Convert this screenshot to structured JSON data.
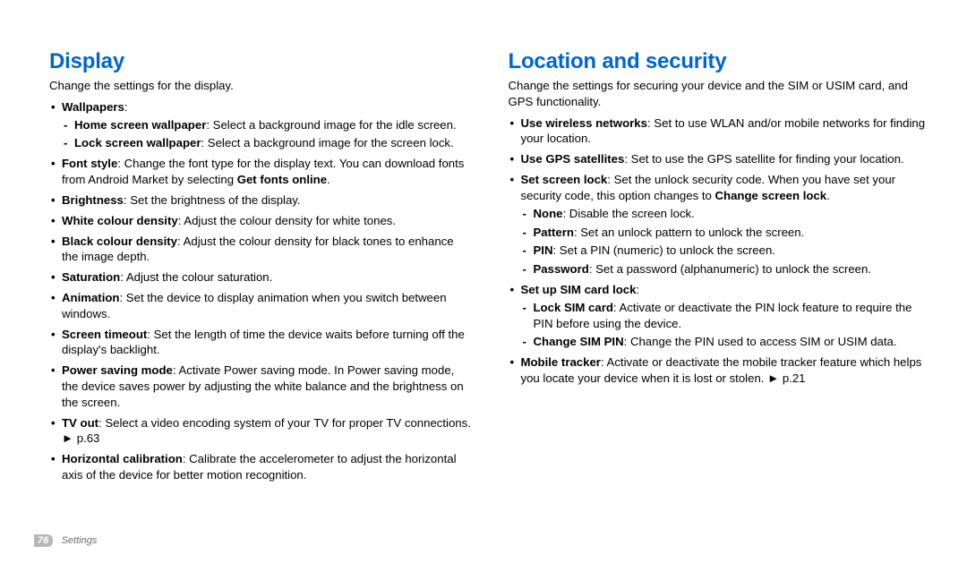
{
  "page": {
    "number": "76",
    "breadcrumb": "Settings"
  },
  "left": {
    "heading": "Display",
    "intro": "Change the settings for the display.",
    "items": [
      {
        "label": "Wallpapers",
        "suffix": ":",
        "sub": [
          {
            "label": "Home screen wallpaper",
            "text": ": Select a background image for the idle screen."
          },
          {
            "label": "Lock screen wallpaper",
            "text": ": Select a background image for the screen lock."
          }
        ]
      },
      {
        "label": "Font style",
        "text_before": ": Change the font type for the display text. You can download fonts from Android Market by selecting ",
        "inline_bold": "Get fonts online",
        "text_after": "."
      },
      {
        "label": "Brightness",
        "text": ": Set the brightness of the display."
      },
      {
        "label": "White colour density",
        "text": ": Adjust the colour density for white tones."
      },
      {
        "label": "Black colour density",
        "text": ": Adjust the colour density for black tones to enhance the image depth."
      },
      {
        "label": "Saturation",
        "text": ": Adjust the colour saturation."
      },
      {
        "label": "Animation",
        "text": ": Set the device to display animation when you switch between windows."
      },
      {
        "label": "Screen timeout",
        "text": ": Set the length of time the device waits before turning off the display's backlight."
      },
      {
        "label": "Power saving mode",
        "text": ": Activate Power saving mode. In Power saving mode, the device saves power by adjusting the white balance and the brightness on the screen."
      },
      {
        "label": "TV out",
        "text": ": Select a video encoding system of your TV for proper TV connections. ► p.63"
      },
      {
        "label": "Horizontal calibration",
        "text": ": Calibrate the accelerometer to adjust the horizontal axis of the device for better motion recognition."
      }
    ]
  },
  "right": {
    "heading": "Location and security",
    "intro": "Change the settings for securing your device and the SIM or USIM card, and GPS functionality.",
    "items": [
      {
        "label": "Use wireless networks",
        "text": ": Set to use WLAN and/or mobile networks for finding your location."
      },
      {
        "label": "Use GPS satellites",
        "text": ": Set to use the GPS satellite for finding your location."
      },
      {
        "label": "Set screen lock",
        "text_before": ": Set the unlock security code. When you have set your security code, this option changes to ",
        "inline_bold": "Change screen lock",
        "text_after": ".",
        "sub": [
          {
            "label": "None",
            "text": ": Disable the screen lock."
          },
          {
            "label": "Pattern",
            "text": ": Set an unlock pattern to unlock the screen."
          },
          {
            "label": "PIN",
            "text": ": Set a PIN (numeric) to unlock the screen."
          },
          {
            "label": "Password",
            "text": ": Set a password (alphanumeric) to unlock the screen."
          }
        ]
      },
      {
        "label": "Set up SIM card lock",
        "suffix": ":",
        "sub": [
          {
            "label": "Lock SIM card",
            "text": ": Activate or deactivate the PIN lock feature to require the PIN before using the device."
          },
          {
            "label": "Change SIM PIN",
            "text": ": Change the PIN used to access SIM or USIM data."
          }
        ]
      },
      {
        "label": "Mobile tracker",
        "text": ": Activate or deactivate the mobile tracker feature which helps you locate your device when it is lost or stolen. ► p.21"
      }
    ]
  }
}
